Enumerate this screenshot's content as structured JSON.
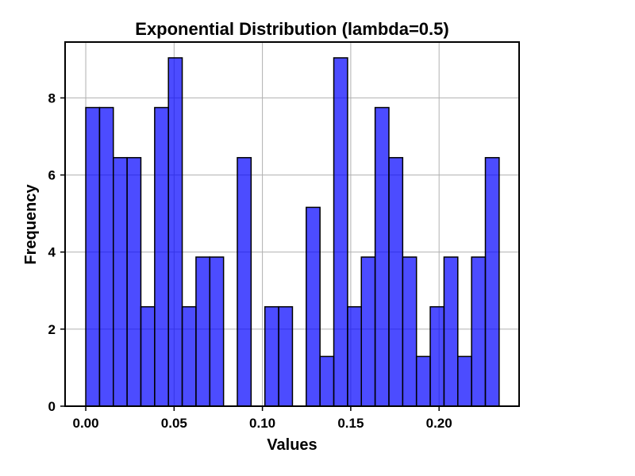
{
  "chart_data": {
    "type": "bar",
    "title": "Exponential Distribution (lambda=0.5)",
    "xlabel": "Values",
    "ylabel": "Frequency",
    "xlim": [
      -0.0117,
      0.2453
    ],
    "ylim": [
      0,
      9.45
    ],
    "grid": true,
    "legend": false,
    "bar_color": "#0000ff",
    "bar_opacity": 0.7,
    "edge_color": "#000000",
    "bin_edges": [
      0.0,
      0.0078,
      0.0156,
      0.0234,
      0.0312,
      0.039,
      0.0468,
      0.0546,
      0.0624,
      0.0702,
      0.078,
      0.0858,
      0.0936,
      0.1014,
      0.1092,
      0.117,
      0.1248,
      0.1326,
      0.1404,
      0.1482,
      0.156,
      0.1638,
      0.1716,
      0.1794,
      0.1872,
      0.195,
      0.2028,
      0.2106,
      0.2184,
      0.2262,
      0.234
    ],
    "values": [
      7.75,
      7.75,
      6.45,
      6.45,
      2.58,
      7.75,
      9.04,
      2.58,
      3.87,
      3.87,
      0,
      6.45,
      0,
      2.58,
      2.58,
      0,
      5.16,
      1.29,
      9.04,
      2.58,
      3.87,
      7.75,
      6.45,
      3.87,
      1.29,
      2.58,
      3.87,
      1.29,
      3.87,
      6.45
    ],
    "x_ticks": [
      0.0,
      0.05,
      0.1,
      0.15,
      0.2
    ],
    "x_tick_labels": [
      "0.00",
      "0.05",
      "0.10",
      "0.15",
      "0.20"
    ],
    "y_ticks": [
      0,
      2,
      4,
      6,
      8
    ],
    "y_tick_labels": [
      "0",
      "2",
      "4",
      "6",
      "8"
    ]
  }
}
